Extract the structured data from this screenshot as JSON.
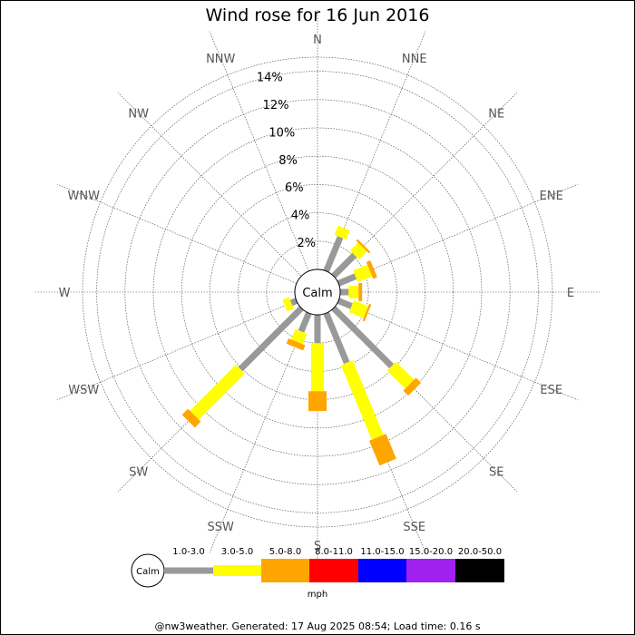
{
  "chart_data": {
    "type": "windrose",
    "title": "Wind rose for 16 Jun 2016",
    "directions": [
      "N",
      "NNE",
      "NE",
      "ENE",
      "E",
      "ESE",
      "SE",
      "SSE",
      "S",
      "SSW",
      "SW",
      "WSW",
      "W",
      "WNW",
      "NW",
      "NNW"
    ],
    "radial_ticks": [
      "2%",
      "4%",
      "6%",
      "8%",
      "10%",
      "12%",
      "14%"
    ],
    "radial_max": 15,
    "calm_label": "Calm",
    "unit": "mph",
    "speed_bins": [
      {
        "label": "1.0-3.0",
        "color": "#999999"
      },
      {
        "label": "3.0-5.0",
        "color": "#ffff00"
      },
      {
        "label": "5.0-8.0",
        "color": "#ffa500"
      },
      {
        "label": "8.0-11.0",
        "color": "#ff0000"
      },
      {
        "label": "11.0-15.0",
        "color": "#0000ff"
      },
      {
        "label": "15.0-20.0",
        "color": "#a020f0"
      },
      {
        "label": "20.0-50.0",
        "color": "#000000"
      }
    ],
    "series": [
      {
        "direction": "N",
        "values": [
          0,
          0,
          0,
          0,
          0,
          0,
          0
        ]
      },
      {
        "direction": "NNE",
        "values": [
          2.6,
          0.7,
          0,
          0,
          0,
          0,
          0
        ]
      },
      {
        "direction": "NE",
        "values": [
          2.1,
          0.8,
          0.15,
          0,
          0,
          0,
          0
        ]
      },
      {
        "direction": "ENE",
        "values": [
          1.3,
          1.1,
          0.3,
          0,
          0,
          0,
          0
        ]
      },
      {
        "direction": "E",
        "values": [
          0.6,
          0.7,
          0.25,
          0,
          0,
          0,
          0
        ]
      },
      {
        "direction": "ESE",
        "values": [
          1.0,
          1.1,
          0.15,
          0,
          0,
          0,
          0
        ]
      },
      {
        "direction": "SE",
        "values": [
          5.8,
          1.8,
          0.5,
          0,
          0,
          0,
          0
        ]
      },
      {
        "direction": "SSE",
        "values": [
          3.8,
          5.7,
          1.9,
          0,
          0,
          0,
          0
        ]
      },
      {
        "direction": "S",
        "values": [
          2.0,
          3.4,
          1.4,
          0,
          0,
          0,
          0
        ]
      },
      {
        "direction": "SSW",
        "values": [
          1.4,
          0.8,
          0.4,
          0,
          0,
          0,
          0
        ]
      },
      {
        "direction": "SW",
        "values": [
          6.1,
          4.6,
          0.6,
          0,
          0,
          0,
          0
        ]
      },
      {
        "direction": "WSW",
        "values": [
          0.4,
          0.5,
          0,
          0,
          0,
          0,
          0
        ]
      },
      {
        "direction": "W",
        "values": [
          0,
          0,
          0,
          0,
          0,
          0,
          0
        ]
      },
      {
        "direction": "WNW",
        "values": [
          0,
          0,
          0,
          0,
          0,
          0,
          0
        ]
      },
      {
        "direction": "NW",
        "values": [
          0,
          0,
          0,
          0,
          0,
          0,
          0
        ]
      },
      {
        "direction": "NNW",
        "values": [
          0,
          0,
          0,
          0,
          0,
          0,
          0
        ]
      }
    ]
  },
  "footer": "@nw3weather. Generated: 17 Aug 2025 08:54; Load time: 0.16 s"
}
